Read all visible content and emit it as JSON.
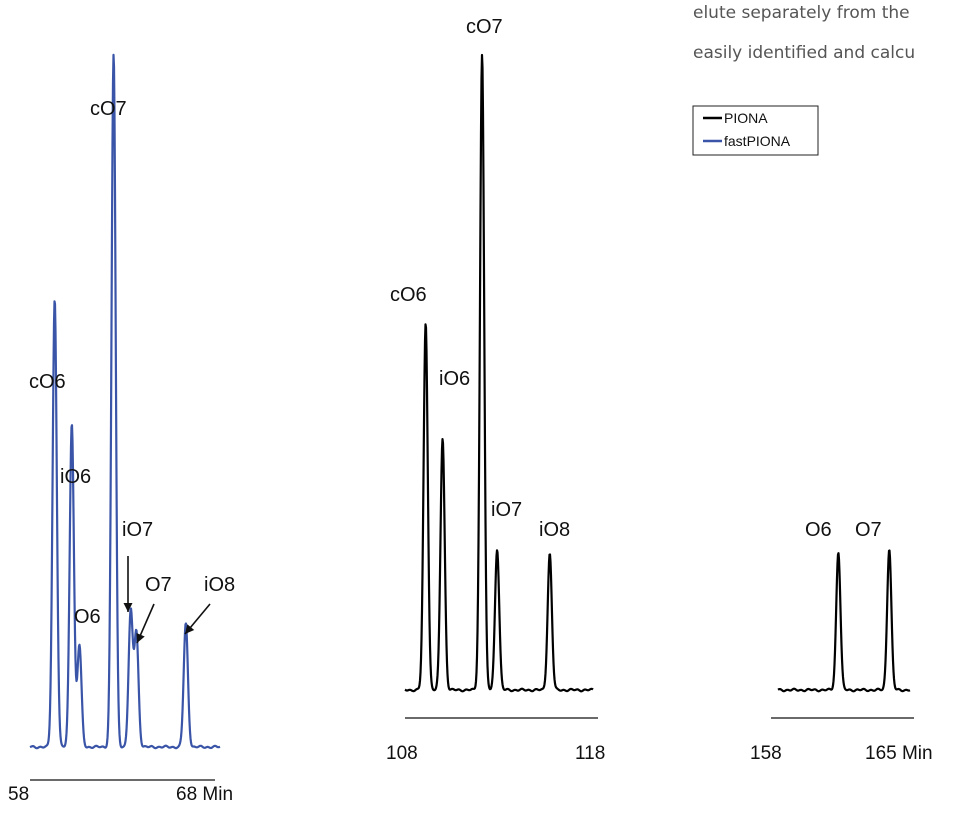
{
  "header_text": {
    "line1": "elute separately from the",
    "line2": "easily identified and calcu"
  },
  "legend": [
    {
      "label": "PIONA",
      "color": "#000000"
    },
    {
      "label": "fastPIONA",
      "color": "#3a55a8"
    }
  ],
  "chart_data": [
    {
      "type": "line",
      "series": [
        {
          "name": "fastPIONA",
          "color": "#3a55a8"
        }
      ],
      "axis": {
        "left": "58",
        "right": "68 Min",
        "xlim": [
          58,
          68
        ]
      },
      "peaks": [
        {
          "label": "cO6",
          "x": 59.3,
          "height": 0.646
        },
        {
          "label": "iO6",
          "x": 60.2,
          "height": 0.468
        },
        {
          "label": "O6",
          "x": 60.6,
          "height": 0.147
        },
        {
          "label": "cO7",
          "x": 62.4,
          "height": 1.0
        },
        {
          "label": "iO7",
          "x": 63.3,
          "height": 0.194
        },
        {
          "label": "O7",
          "x": 63.6,
          "height": 0.164
        },
        {
          "label": "iO8",
          "x": 66.2,
          "height": 0.178
        }
      ]
    },
    {
      "type": "line",
      "series": [
        {
          "name": "PIONA",
          "color": "#000000"
        }
      ],
      "axis": {
        "left": "108",
        "right": "118",
        "xlim": [
          108,
          118
        ]
      },
      "peaks": [
        {
          "label": "cO6",
          "x": 109.1,
          "height": 0.577
        },
        {
          "label": "iO6",
          "x": 110.0,
          "height": 0.396
        },
        {
          "label": "cO7",
          "x": 112.1,
          "height": 1.0
        },
        {
          "label": "iO7",
          "x": 112.9,
          "height": 0.222
        },
        {
          "label": "iO8",
          "x": 115.7,
          "height": 0.214
        }
      ]
    },
    {
      "type": "line",
      "series": [
        {
          "name": "PIONA",
          "color": "#000000"
        }
      ],
      "axis": {
        "left": "158",
        "right": "165 Min",
        "xlim": [
          158,
          165
        ]
      },
      "peaks": [
        {
          "label": "O6",
          "x": 161.2,
          "height": 0.217
        },
        {
          "label": "O7",
          "x": 163.9,
          "height": 0.222
        }
      ]
    }
  ]
}
